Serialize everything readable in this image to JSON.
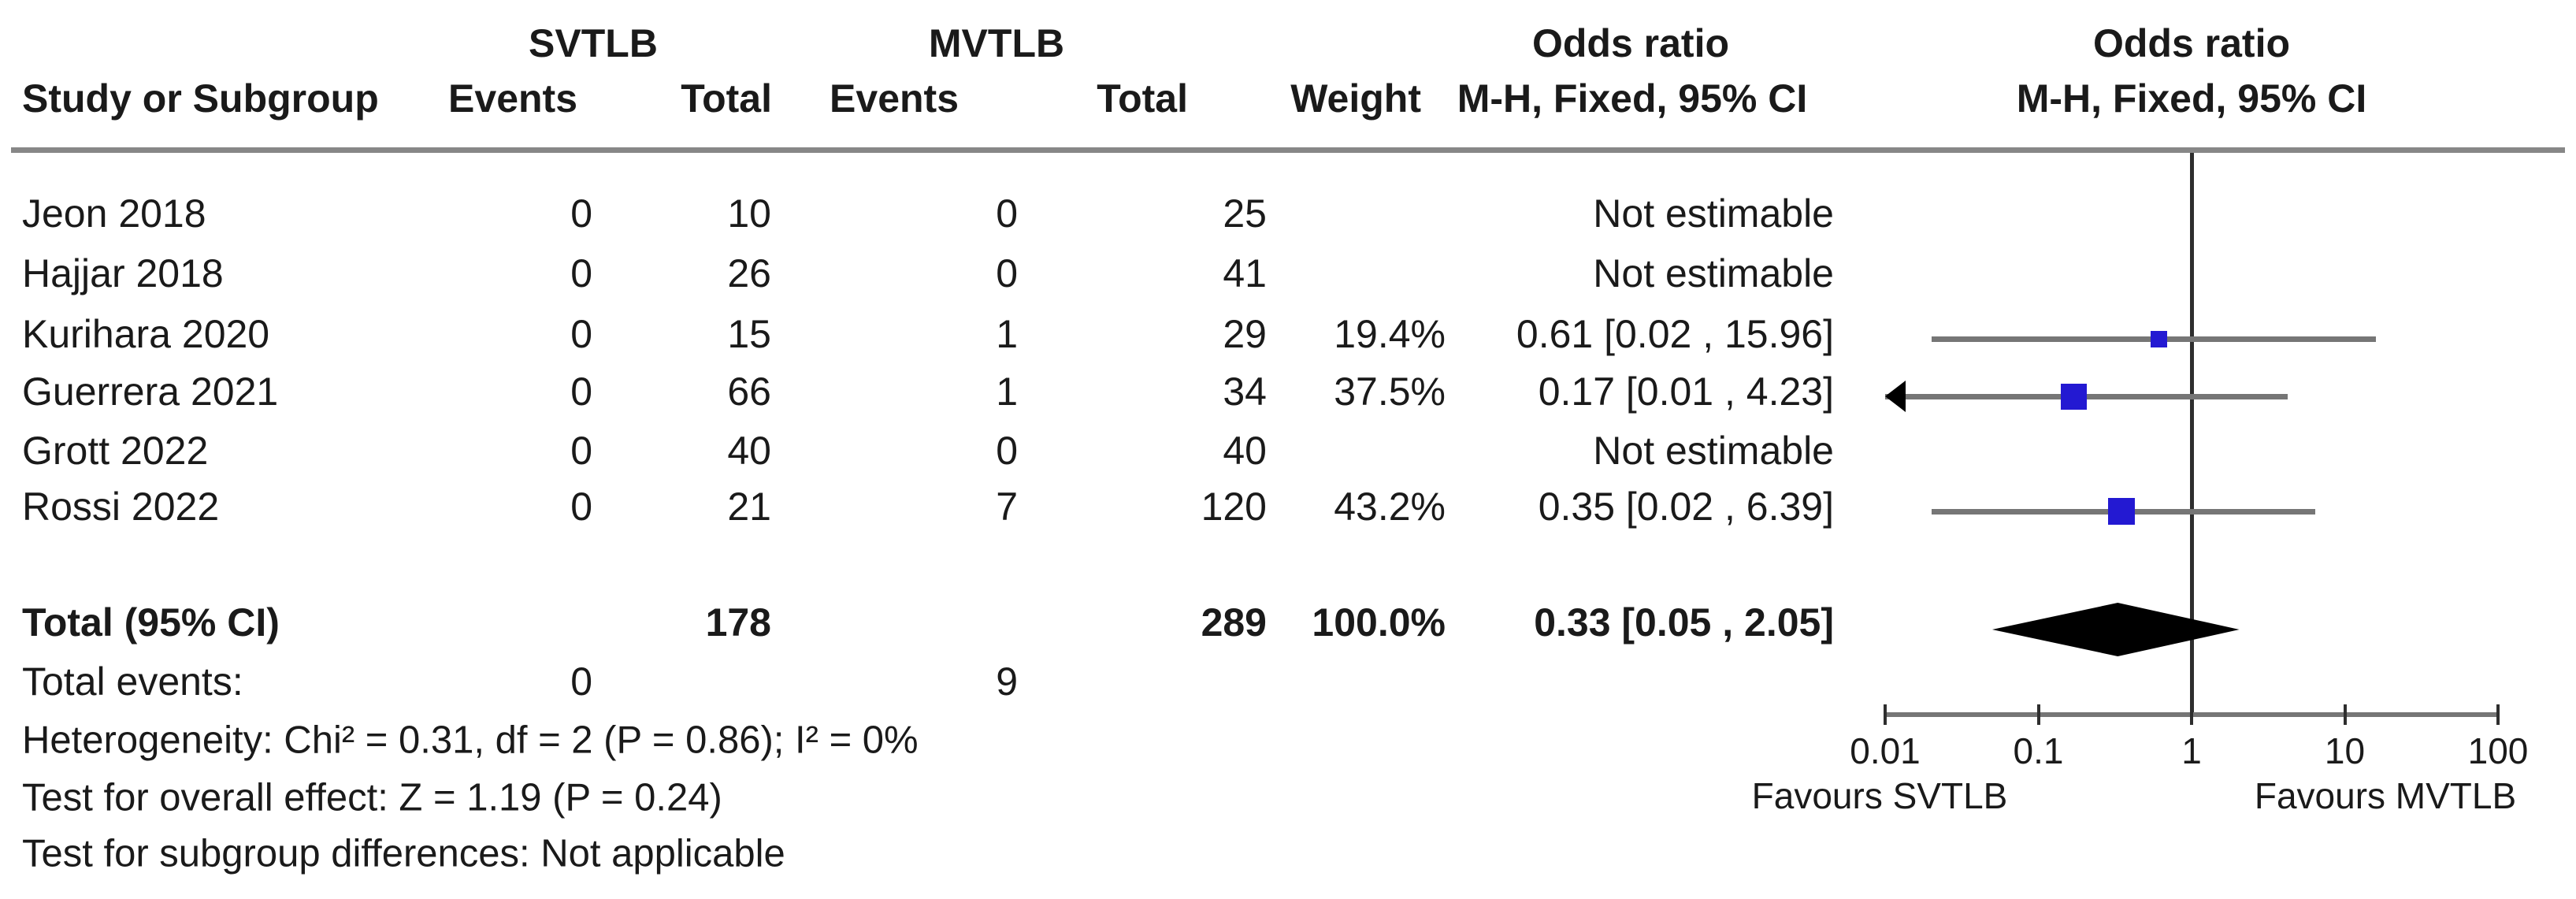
{
  "table": {
    "group1_label": "SVTLB",
    "group2_label": "MVTLB",
    "or_col_title": "Odds ratio",
    "or_col_subtitle": "M-H, Fixed, 95% CI",
    "plot_col_title": "Odds ratio",
    "plot_col_subtitle": "M-H, Fixed, 95% CI",
    "headers": {
      "study": "Study or Subgroup",
      "events1": "Events",
      "total1": "Total",
      "events2": "Events",
      "total2": "Total",
      "weight": "Weight"
    },
    "studies": [
      {
        "name": "Jeon 2018",
        "e1": "0",
        "t1": "10",
        "e2": "0",
        "t2": "25",
        "weight": "",
        "ci_text": "Not estimable"
      },
      {
        "name": "Hajjar 2018",
        "e1": "0",
        "t1": "26",
        "e2": "0",
        "t2": "41",
        "weight": "",
        "ci_text": "Not estimable"
      },
      {
        "name": "Kurihara 2020",
        "e1": "0",
        "t1": "15",
        "e2": "1",
        "t2": "29",
        "weight": "19.4%",
        "ci_text": "0.61 [0.02 , 15.96]"
      },
      {
        "name": "Guerrera 2021",
        "e1": "0",
        "t1": "66",
        "e2": "1",
        "t2": "34",
        "weight": "37.5%",
        "ci_text": "0.17 [0.01 , 4.23]"
      },
      {
        "name": "Grott 2022",
        "e1": "0",
        "t1": "40",
        "e2": "0",
        "t2": "40",
        "weight": "",
        "ci_text": "Not estimable"
      },
      {
        "name": "Rossi 2022",
        "e1": "0",
        "t1": "21",
        "e2": "7",
        "t2": "120",
        "weight": "43.2%",
        "ci_text": "0.35 [0.02 , 6.39]"
      }
    ],
    "total_row": {
      "label": "Total (95% CI)",
      "t1": "178",
      "t2": "289",
      "weight": "100.0%",
      "ci_text": "0.33 [0.05 , 2.05]"
    },
    "total_events": {
      "label": "Total events:",
      "e1": "0",
      "e2": "9"
    },
    "footnotes": [
      "Heterogeneity: Chi² = 0.31, df = 2 (P = 0.86); I² = 0%",
      "Test for overall effect: Z = 1.19 (P = 0.24)",
      "Test for subgroup differences: Not applicable"
    ]
  },
  "chart_data": {
    "type": "scatter",
    "variant": "forest-plot",
    "x_scale": "log",
    "xlim": [
      0.01,
      100
    ],
    "tick_labels": [
      "0.01",
      "0.1",
      "1",
      "10",
      "100"
    ],
    "null_line_value": 1,
    "favours_left": "Favours SVTLB",
    "favours_right": "Favours MVTLB",
    "points": [
      {
        "study": "Jeon 2018",
        "estimable": false
      },
      {
        "study": "Hajjar 2018",
        "estimable": false
      },
      {
        "study": "Kurihara 2020",
        "estimable": true,
        "or": 0.61,
        "ci_low": 0.02,
        "ci_high": 15.96,
        "weight_pct": 19.4,
        "marker_px": 21,
        "row": 2
      },
      {
        "study": "Guerrera 2021",
        "estimable": true,
        "or": 0.17,
        "ci_low": 0.01,
        "ci_high": 4.23,
        "weight_pct": 37.5,
        "marker_px": 33,
        "arrow_low": true,
        "row": 3
      },
      {
        "study": "Grott 2022",
        "estimable": false
      },
      {
        "study": "Rossi 2022",
        "estimable": true,
        "or": 0.35,
        "ci_low": 0.02,
        "ci_high": 6.39,
        "weight_pct": 43.2,
        "marker_px": 34,
        "row": 5
      }
    ],
    "total": {
      "or": 0.33,
      "ci_low": 0.05,
      "ci_high": 2.05
    }
  },
  "colors": {
    "marker_blue": "#2319d2",
    "diamond": "#000000",
    "ci_line": "#767676",
    "axis": "#767676",
    "null_line": "#2e2e2e",
    "divider": "#878787",
    "arrow": "#000000",
    "text": "#1a1a1a"
  }
}
